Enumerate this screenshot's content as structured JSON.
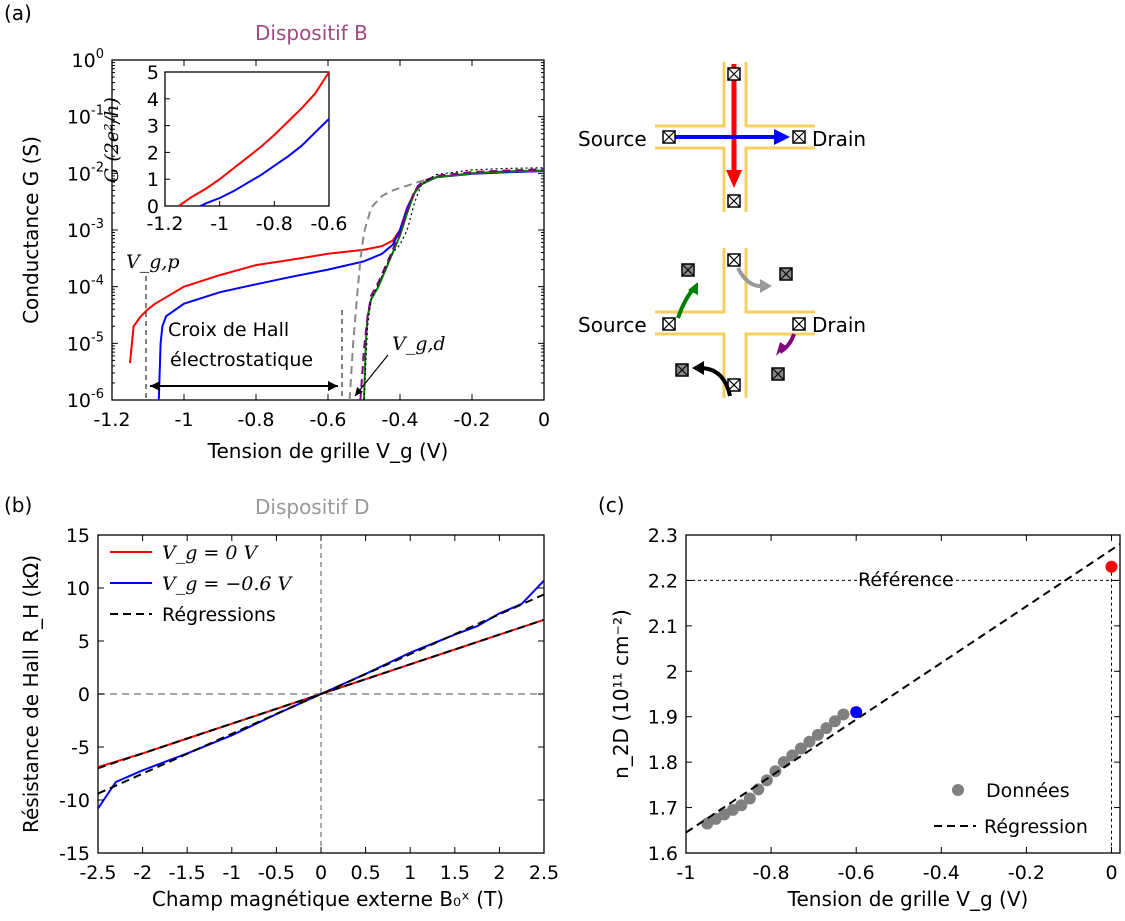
{
  "panels": {
    "a": {
      "label": "(a)",
      "title": "Dispositif B",
      "title_color": "#a04a80",
      "ylabel": "Conductance G (S)",
      "xlabel": "Tension de grille V_g (V)",
      "yticks": [
        "10^0",
        "10^-1",
        "10^-2",
        "10^-3",
        "10^-4",
        "10^-5",
        "10^-6"
      ],
      "xticks": [
        "-1.2",
        "-1",
        "-0.8",
        "-0.6",
        "-0.4",
        "-0.2",
        "0"
      ],
      "annot_vgp": "V_g,p",
      "annot_vgd": "V_g,d",
      "annot_hall_1": "Croix de Hall",
      "annot_hall_2": "électrostatique",
      "inset": {
        "ylabel": "G (2e²/h)",
        "yticks": [
          "5",
          "4",
          "3",
          "2",
          "1",
          "0"
        ],
        "xticks": [
          "-1.2",
          "-1",
          "-0.8",
          "-0.6"
        ]
      }
    },
    "b": {
      "label": "(b)",
      "title": "Dispositif D",
      "title_color": "#999999",
      "ylabel": "Résistance de  Hall R_H (kΩ)",
      "xlabel": "Champ magnétique externe B₀ˣ (T)",
      "yticks": [
        "15",
        "10",
        "5",
        "0",
        "-5",
        "-10",
        "-15"
      ],
      "xticks": [
        "-2.5",
        "-2",
        "-1.5",
        "-1",
        "-0.5",
        "0",
        "0.5",
        "1",
        "1.5",
        "2",
        "2.5"
      ],
      "legend": [
        {
          "label": "V_g = 0 V",
          "color": "#ff0000"
        },
        {
          "label": "V_g = −0.6 V",
          "color": "#0000ff"
        },
        {
          "label": "Régressions",
          "color": "#000000"
        }
      ]
    },
    "c": {
      "label": "(c)",
      "ylabel": "n_2D  (10¹¹ cm⁻²)",
      "xlabel": "Tension de grille V_g (V)",
      "yticks": [
        "2.3",
        "2.2",
        "2.1",
        "2",
        "1.9",
        "1.8",
        "1.7",
        "1.6"
      ],
      "xticks": [
        "-1",
        "-0.8",
        "-0.6",
        "-0.4",
        "-0.2",
        "0"
      ],
      "reference_label": "Référence",
      "legend": [
        {
          "label": "Données",
          "color": "#808080"
        },
        {
          "label": "Régression",
          "color": "#000000"
        }
      ]
    },
    "schematic": {
      "source_label": "Source",
      "drain_label": "Drain"
    }
  },
  "chart_data": [
    {
      "type": "line",
      "panel": "a",
      "title": "Dispositif B",
      "xlabel": "Tension de grille V_g (V)",
      "ylabel": "Conductance G (S)",
      "xlim": [
        -1.2,
        0
      ],
      "ylim": [
        1e-06,
        1
      ],
      "yscale": "log",
      "series": [
        {
          "color": "#ff0000",
          "x": [
            -1.15,
            -1.14,
            -1.12,
            -1.1,
            -1.08,
            -1.05,
            -1.0,
            -0.9,
            -0.8,
            -0.7,
            -0.6,
            -0.5,
            -0.45,
            -0.42,
            -0.4,
            -0.38,
            -0.35,
            -0.3,
            -0.2,
            -0.1,
            0.0
          ],
          "y": [
            4.5e-06,
            2e-05,
            3e-05,
            4e-05,
            5e-05,
            6.5e-05,
            0.0001,
            0.00016,
            0.00024,
            0.0003,
            0.00038,
            0.00045,
            0.00052,
            0.00065,
            0.001,
            0.0025,
            0.006,
            0.0085,
            0.0098,
            0.0105,
            0.011
          ]
        },
        {
          "color": "#0000ff",
          "x": [
            -1.07,
            -1.065,
            -1.06,
            -1.05,
            -1.0,
            -0.9,
            -0.8,
            -0.7,
            -0.6,
            -0.5,
            -0.45,
            -0.42,
            -0.4,
            -0.38,
            -0.35,
            -0.3,
            -0.2,
            -0.1,
            0.0
          ],
          "y": [
            1e-06,
            1e-05,
            2e-05,
            3e-05,
            5e-05,
            8e-05,
            0.00011,
            0.00015,
            0.0002,
            0.00028,
            0.00038,
            0.00055,
            0.001,
            0.0024,
            0.006,
            0.0085,
            0.0098,
            0.0105,
            0.011
          ]
        },
        {
          "color": "#888888",
          "dash": true,
          "x": [
            -0.54,
            -0.53,
            -0.52,
            -0.51,
            -0.5,
            -0.48,
            -0.45,
            -0.42,
            -0.4,
            -0.35,
            -0.3,
            -0.2,
            -0.1,
            0.0
          ],
          "y": [
            1e-06,
            1e-05,
            6e-05,
            0.0003,
            0.0009,
            0.0025,
            0.004,
            0.005,
            0.0055,
            0.007,
            0.0085,
            0.01,
            0.0108,
            0.0112
          ]
        },
        {
          "color": "#008000",
          "x": [
            -0.5,
            -0.495,
            -0.49,
            -0.48,
            -0.46,
            -0.44,
            -0.42,
            -0.4,
            -0.38,
            -0.36,
            -0.34,
            -0.3,
            -0.2,
            -0.1,
            0.0
          ],
          "y": [
            1e-06,
            1e-05,
            3e-05,
            6e-05,
            0.0001,
            0.0002,
            0.0004,
            0.0008,
            0.002,
            0.0045,
            0.0065,
            0.0085,
            0.01,
            0.0108,
            0.0112
          ]
        },
        {
          "color": "#800080",
          "dash": true,
          "x": [
            -0.51,
            -0.5,
            -0.49,
            -0.48,
            -0.46,
            -0.44,
            -0.42,
            -0.4,
            -0.38,
            -0.36,
            -0.34,
            -0.3,
            -0.2,
            -0.1,
            0.0
          ],
          "y": [
            1e-06,
            8e-06,
            3e-05,
            7e-05,
            0.00012,
            0.00023,
            0.00045,
            0.0009,
            0.0022,
            0.0048,
            0.007,
            0.009,
            0.0105,
            0.0112,
            0.0118
          ]
        },
        {
          "color": "#000000",
          "dot": true,
          "x": [
            -0.5,
            -0.49,
            -0.48,
            -0.46,
            -0.44,
            -0.42,
            -0.4,
            -0.38,
            -0.36,
            -0.34,
            -0.3,
            -0.2,
            -0.1,
            0.0
          ],
          "y": [
            1e-06,
            2e-05,
            6e-05,
            0.00011,
            0.00022,
            0.0004,
            0.00055,
            0.001,
            0.003,
            0.0065,
            0.0095,
            0.0115,
            0.0122,
            0.0125
          ]
        }
      ]
    },
    {
      "type": "line",
      "panel": "a-inset",
      "xlim": [
        -1.2,
        -0.6
      ],
      "ylim": [
        0,
        5
      ],
      "series": [
        {
          "color": "#ff0000",
          "x": [
            -1.15,
            -1.1,
            -1.05,
            -1.0,
            -0.95,
            -0.9,
            -0.85,
            -0.8,
            -0.75,
            -0.7,
            -0.65,
            -0.6
          ],
          "y": [
            0.0,
            0.35,
            0.65,
            1.0,
            1.4,
            1.8,
            2.2,
            2.65,
            3.15,
            3.65,
            4.2,
            5.0
          ]
        },
        {
          "color": "#0000ff",
          "x": [
            -1.07,
            -1.05,
            -1.0,
            -0.95,
            -0.9,
            -0.85,
            -0.8,
            -0.75,
            -0.7,
            -0.65,
            -0.6
          ],
          "y": [
            0.0,
            0.1,
            0.3,
            0.55,
            0.85,
            1.15,
            1.5,
            1.85,
            2.25,
            2.75,
            3.25
          ]
        }
      ]
    },
    {
      "type": "line",
      "panel": "b",
      "title": "Dispositif D",
      "xlabel": "Champ magnétique externe B₀ˣ (T)",
      "ylabel": "Résistance de  Hall R_H (kΩ)",
      "xlim": [
        -2.5,
        2.5
      ],
      "ylim": [
        -15,
        15
      ],
      "series": [
        {
          "name": "V_g = 0 V",
          "color": "#ff0000",
          "x": [
            -2.5,
            -2.0,
            -1.5,
            -1.0,
            -0.5,
            0.0,
            0.5,
            1.0,
            1.5,
            2.0,
            2.5
          ],
          "y": [
            -6.9,
            -5.6,
            -4.2,
            -2.8,
            -1.4,
            0.0,
            1.4,
            2.8,
            4.2,
            5.6,
            7.0
          ]
        },
        {
          "name": "V_g = −0.6 V",
          "color": "#0000ff",
          "x": [
            -2.5,
            -2.3,
            -2.0,
            -1.5,
            -1.0,
            -0.5,
            0.0,
            0.5,
            1.0,
            1.5,
            1.75,
            2.0,
            2.25,
            2.5
          ],
          "y": [
            -10.8,
            -8.3,
            -7.2,
            -5.6,
            -3.9,
            -1.9,
            0.0,
            1.9,
            3.9,
            5.6,
            6.4,
            7.6,
            8.5,
            10.7
          ]
        },
        {
          "name": "Régressions",
          "color": "#000000",
          "dash": true,
          "x": [
            -2.5,
            2.5
          ],
          "y": [
            -7.0,
            7.0
          ]
        },
        {
          "name": "Régressions",
          "color": "#000000",
          "dash": true,
          "x": [
            -2.5,
            2.5
          ],
          "y": [
            -9.4,
            9.4
          ]
        }
      ]
    },
    {
      "type": "scatter",
      "panel": "c",
      "xlabel": "Tension de grille V_g (V)",
      "ylabel": "n_2D  (10¹¹ cm⁻²)",
      "xlim": [
        -1,
        0.02
      ],
      "ylim": [
        1.6,
        2.3
      ],
      "reference": 2.2,
      "series": [
        {
          "name": "Données",
          "color": "#808080",
          "x": [
            -0.95,
            -0.93,
            -0.91,
            -0.89,
            -0.87,
            -0.85,
            -0.83,
            -0.81,
            -0.79,
            -0.77,
            -0.75,
            -0.73,
            -0.71,
            -0.69,
            -0.67,
            -0.65,
            -0.63
          ],
          "y": [
            1.665,
            1.675,
            1.685,
            1.695,
            1.705,
            1.72,
            1.74,
            1.76,
            1.78,
            1.8,
            1.815,
            1.83,
            1.845,
            1.86,
            1.875,
            1.89,
            1.905
          ]
        },
        {
          "color": "#0000ff",
          "x": [
            -0.6
          ],
          "y": [
            1.91
          ]
        },
        {
          "color": "#ff0000",
          "x": [
            0.0
          ],
          "y": [
            2.23
          ]
        },
        {
          "name": "Régression",
          "color": "#000000",
          "dash": true,
          "x": [
            -1.0,
            0.02
          ],
          "y": [
            1.645,
            2.28
          ]
        }
      ]
    }
  ]
}
